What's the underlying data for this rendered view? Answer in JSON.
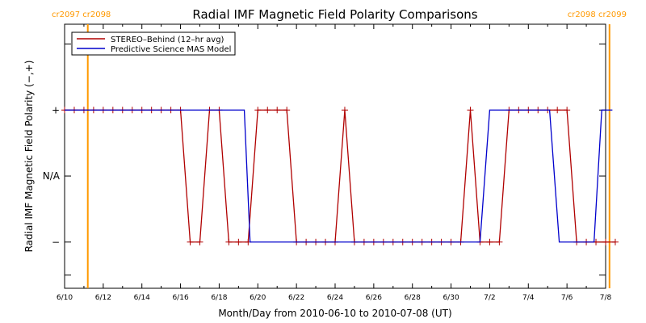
{
  "chart_data": {
    "type": "line",
    "title": "Radial IMF Magnetic Field Polarity Comparisons",
    "xlabel": "Month/Day from 2010-06-10 to 2010-07-08 (UT)",
    "ylabel": "Radial IMF Magnetic Field Polarity (−,+)",
    "x_ticks": [
      "6/10",
      "6/12",
      "6/14",
      "6/16",
      "6/18",
      "6/20",
      "6/22",
      "6/24",
      "6/26",
      "6/28",
      "6/30",
      "7/2",
      "7/4",
      "7/6",
      "7/8"
    ],
    "xlim": [
      "2010-06-10",
      "2010-07-08"
    ],
    "y_categories": [
      "−",
      "N/A",
      "+"
    ],
    "ylim": [
      -1.7,
      2.3
    ],
    "carrington_markers": [
      {
        "date": "2010-06-11.2",
        "label": "cr2097 cr2098",
        "position": "left"
      },
      {
        "date": "2010-07-08.2",
        "label": "cr2098 cr2099",
        "position": "right"
      }
    ],
    "series": [
      {
        "name": "STEREO–Behind (12–hr avg)",
        "color": "#b00000",
        "marker": "+",
        "points": [
          [
            0.0,
            1
          ],
          [
            0.5,
            1
          ],
          [
            1.0,
            1
          ],
          [
            1.5,
            1
          ],
          [
            2.0,
            1
          ],
          [
            2.5,
            1
          ],
          [
            3.0,
            1
          ],
          [
            3.5,
            1
          ],
          [
            4.0,
            1
          ],
          [
            4.5,
            1
          ],
          [
            5.0,
            1
          ],
          [
            5.5,
            1
          ],
          [
            6.0,
            1
          ],
          [
            6.5,
            -1
          ],
          [
            7.0,
            -1
          ],
          [
            7.5,
            1
          ],
          [
            8.0,
            1
          ],
          [
            8.5,
            -1
          ],
          [
            9.0,
            -1
          ],
          [
            9.5,
            -1
          ],
          [
            10.0,
            1
          ],
          [
            10.5,
            1
          ],
          [
            11.0,
            1
          ],
          [
            11.5,
            1
          ],
          [
            12.0,
            -1
          ],
          [
            12.5,
            -1
          ],
          [
            13.0,
            -1
          ],
          [
            13.5,
            -1
          ],
          [
            14.0,
            -1
          ],
          [
            14.5,
            1
          ],
          [
            15.0,
            -1
          ],
          [
            15.5,
            -1
          ],
          [
            16.0,
            -1
          ],
          [
            16.5,
            -1
          ],
          [
            17.0,
            -1
          ],
          [
            17.5,
            -1
          ],
          [
            18.0,
            -1
          ],
          [
            18.5,
            -1
          ],
          [
            19.0,
            -1
          ],
          [
            19.5,
            -1
          ],
          [
            20.0,
            -1
          ],
          [
            20.5,
            -1
          ],
          [
            21.0,
            1
          ],
          [
            21.5,
            -1
          ],
          [
            22.0,
            -1
          ],
          [
            22.5,
            -1
          ],
          [
            23.0,
            1
          ],
          [
            23.5,
            1
          ],
          [
            24.0,
            1
          ],
          [
            24.5,
            1
          ],
          [
            25.0,
            1
          ],
          [
            25.5,
            1
          ],
          [
            26.0,
            1
          ],
          [
            26.5,
            -1
          ],
          [
            27.0,
            -1
          ],
          [
            27.5,
            -1
          ],
          [
            28.0,
            -1
          ],
          [
            28.5,
            -1
          ]
        ]
      },
      {
        "name": "Predictive Science MAS Model",
        "color": "#0000cc",
        "marker": "none",
        "points": [
          [
            0.0,
            1
          ],
          [
            9.0,
            1
          ],
          [
            9.3,
            1
          ],
          [
            9.6,
            -1
          ],
          [
            21.5,
            -1
          ],
          [
            22.0,
            1
          ],
          [
            25.1,
            1
          ],
          [
            25.6,
            -1
          ],
          [
            27.4,
            -1
          ],
          [
            27.8,
            1
          ],
          [
            28.35,
            1
          ]
        ]
      }
    ]
  }
}
